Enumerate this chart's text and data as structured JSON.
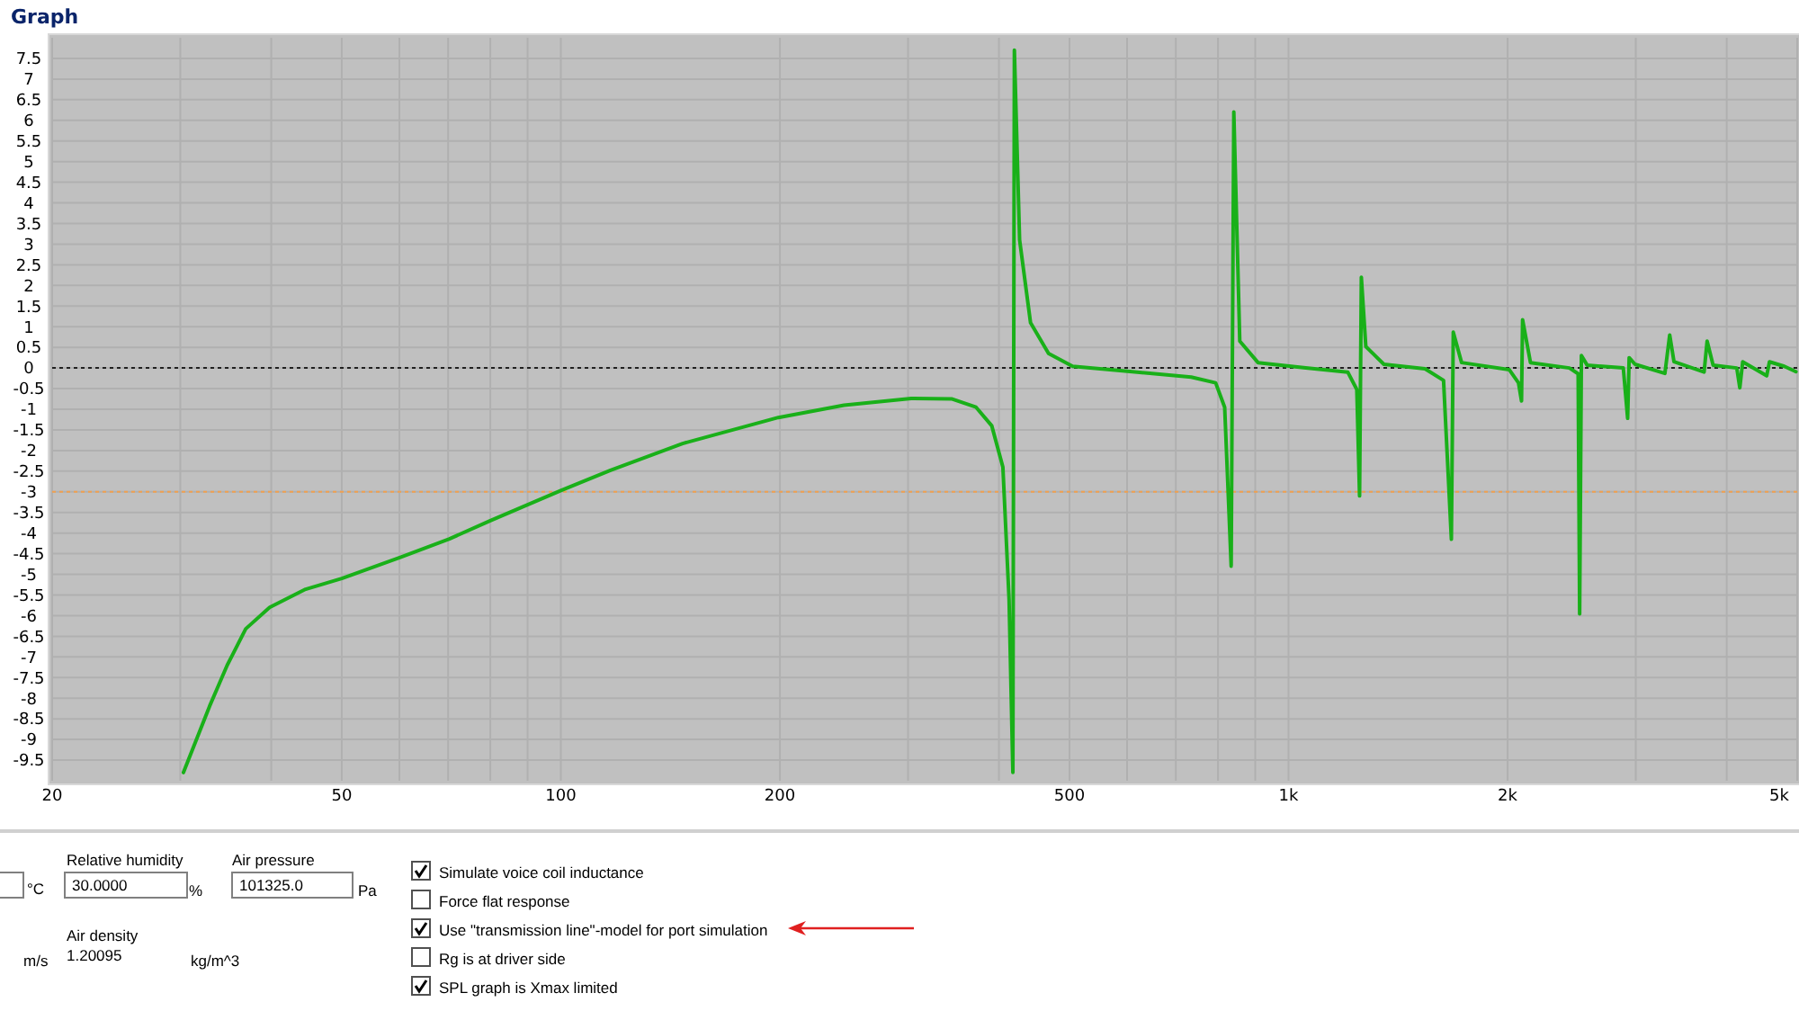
{
  "chart_data": [
    {
      "type": "line",
      "title": "Graph",
      "x": [
        30.3,
        32.9,
        34.8,
        36.9,
        39.8,
        44.6,
        50,
        60.3,
        70.3,
        80,
        100,
        117,
        147,
        199,
        245,
        303,
        345,
        372,
        391,
        405,
        413,
        418,
        420,
        427,
        442,
        468,
        505,
        610,
        735,
        794,
        817,
        834,
        841,
        857,
        908,
        1056,
        1206,
        1241,
        1252,
        1259,
        1277,
        1352,
        1540,
        1633,
        1674,
        1684,
        1729,
        2010,
        2070,
        2090,
        2097,
        2150,
        2432,
        2500,
        2512,
        2526,
        2572,
        2884,
        2924,
        2938,
        2993,
        3290,
        3340,
        3386,
        3724,
        3760,
        3832,
        4130,
        4170,
        4208,
        4540,
        4580,
        4800,
        4980
      ],
      "series": [
        {
          "color": "#19b019",
          "values": [
            -9.8,
            -8.2,
            -7.2,
            -6.32,
            -5.8,
            -5.36,
            -5.1,
            -4.58,
            -4.14,
            -3.7,
            -2.97,
            -2.48,
            -1.83,
            -1.2,
            -0.9,
            -0.74,
            -0.75,
            -0.95,
            -1.4,
            -2.4,
            -5.6,
            -9.8,
            7.7,
            3.1,
            1.1,
            0.35,
            0.04,
            -0.09,
            -0.22,
            -0.36,
            -0.95,
            -4.8,
            6.2,
            0.65,
            0.13,
            0,
            -0.1,
            -0.52,
            -3.1,
            2.2,
            0.52,
            0.09,
            -0.02,
            -0.3,
            -4.15,
            0.87,
            0.13,
            -0.04,
            -0.36,
            -0.8,
            1.17,
            0.13,
            0,
            -0.14,
            -5.96,
            0.3,
            0.07,
            0,
            -1.22,
            0.25,
            0.09,
            -0.13,
            0.8,
            0.15,
            -0.1,
            0.65,
            0.07,
            0,
            -0.48,
            0.15,
            -0.19,
            0.15,
            0.04,
            -0.09
          ]
        }
      ],
      "log": "x",
      "xlim": [
        20,
        5000
      ],
      "xticks": [
        20,
        {
          "value": 30,
          "label": null
        },
        {
          "value": 40,
          "label": null
        },
        50,
        {
          "value": 60,
          "label": null
        },
        {
          "value": 70,
          "label": null
        },
        {
          "value": 80,
          "label": null
        },
        {
          "value": 90,
          "label": null
        },
        100,
        200,
        {
          "value": 300,
          "label": null
        },
        {
          "value": 400,
          "label": null
        },
        500,
        {
          "value": 600,
          "label": null
        },
        {
          "value": 700,
          "label": null
        },
        {
          "value": 800,
          "label": null
        },
        {
          "value": 900,
          "label": null
        },
        {
          "value": 1000,
          "label": "1k"
        },
        {
          "value": 2000,
          "label": "2k"
        },
        {
          "value": 3000,
          "label": null
        },
        {
          "value": 4000,
          "label": null
        },
        {
          "value": 5000,
          "label": "5k"
        }
      ],
      "ylim": [
        -10,
        8
      ],
      "yticks": [
        -9.5,
        -9,
        -8.5,
        -8,
        -7.5,
        -7,
        -6.5,
        -6,
        -5.5,
        -5,
        -4.5,
        -4,
        -3.5,
        -3,
        -2.5,
        -2,
        -1.5,
        -1,
        -0.5,
        0,
        0.5,
        1,
        1.5,
        2,
        2.5,
        3,
        3.5,
        4,
        4.5,
        5,
        5.5,
        6,
        6.5,
        7,
        7.5
      ],
      "grid": true,
      "marker": "none",
      "line_style": "solid",
      "ref_lines": [
        {
          "axis": "y",
          "value": 0,
          "color": "#202020",
          "line_style": "dotted"
        },
        {
          "axis": "y",
          "value": -3,
          "color": "#f0a050",
          "line_style": "dotted"
        }
      ]
    },
    {
      "type": "other",
      "annotations": [
        "°C",
        "Relative humidity",
        "30.0000",
        "%",
        "Air pressure",
        "101325.0",
        "Pa",
        "m/s",
        "Air density",
        "1.20095",
        "kg/m^3",
        "Simulate voice coil inductance",
        "Force flat response",
        "Use \"transmission line\"-model for port simulation",
        "Rg is at driver side",
        "SPL graph is Xmax limited"
      ]
    }
  ]
}
